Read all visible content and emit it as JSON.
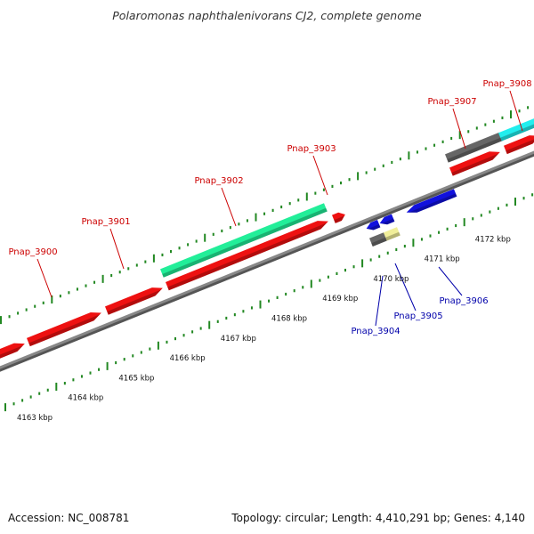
{
  "title": "Polaromonas naphthalenivorans CJ2, complete genome",
  "footer": {
    "accession": "Accession: NC_008781",
    "summary": "Topology: circular; Length: 4,410,291 bp; Genes: 4,140"
  },
  "colors": {
    "backbone": "#888888",
    "tick": "#228822",
    "label_forward": "#cc0000",
    "label_reverse": "#0000aa",
    "gene_red": "#ee1111",
    "gene_green": "#22ee99",
    "gene_cyan": "#22eeee",
    "gene_gray": "#666666",
    "gene_blue": "#1111dd",
    "gene_pale": "#f0ee99"
  },
  "axis": {
    "tick_labels": [
      "4163 kbp",
      "4164 kbp",
      "4165 kbp",
      "4166 kbp",
      "4167 kbp",
      "4168 kbp",
      "4169 kbp",
      "4170 kbp",
      "4171 kbp",
      "4172 kbp"
    ]
  },
  "gene_labels": {
    "forward": [
      "Pnap_3900",
      "Pnap_3901",
      "Pnap_3902",
      "Pnap_3903",
      "Pnap_3907",
      "Pnap_3908"
    ],
    "reverse": [
      "Pnap_3904",
      "Pnap_3905",
      "Pnap_3906"
    ]
  },
  "genes": [
    {
      "id": "Pnap_3900",
      "strand": "+",
      "color": "gene_red"
    },
    {
      "id": "Pnap_3901",
      "strand": "+",
      "color": "gene_red"
    },
    {
      "id": "Pnap_3902",
      "strand": "+",
      "color": "gene_red"
    },
    {
      "id": "Pnap_3903",
      "strand": "+",
      "color": "gene_red"
    },
    {
      "id": "Pnap_3907",
      "strand": "+",
      "color": "gene_red"
    },
    {
      "id": "Pnap_3908",
      "strand": "+",
      "color": "gene_red"
    },
    {
      "id": "Pnap_3904",
      "strand": "-",
      "color": "gene_blue"
    },
    {
      "id": "Pnap_3905",
      "strand": "-",
      "color": "gene_blue"
    },
    {
      "id": "Pnap_3906",
      "strand": "-",
      "color": "gene_blue"
    }
  ]
}
